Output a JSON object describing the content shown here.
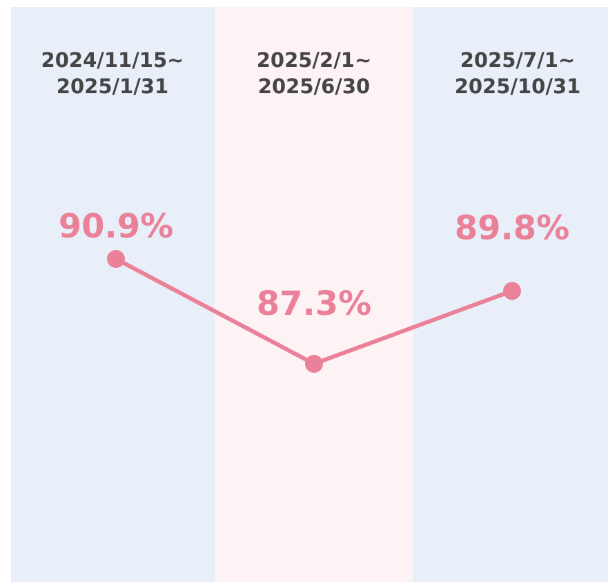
{
  "chart_data": {
    "type": "line",
    "categories": [
      "2024/11/15~\n2025/1/31",
      "2025/2/1~\n2025/6/30",
      "2025/7/1~\n2025/10/31"
    ],
    "series": [
      {
        "color": "#ea8199",
        "values": [
          90.9,
          87.3,
          89.8
        ],
        "value_labels": [
          "90.9%",
          "87.3%",
          "89.8%"
        ]
      }
    ],
    "ylim": [
      80,
      100
    ]
  }
}
